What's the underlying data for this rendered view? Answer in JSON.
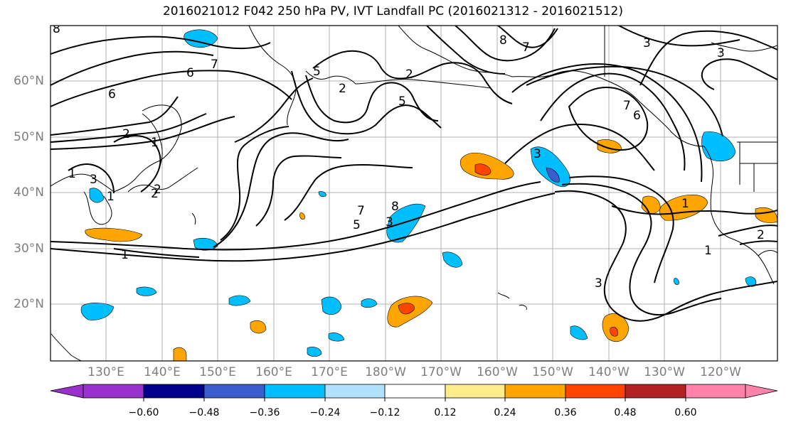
{
  "title": "2016021012 F042 250 hPa PV, IVT Landfall PC (2016021312 - 2016021512)",
  "map": {
    "lon_labels": [
      "130°E",
      "140°E",
      "150°E",
      "160°E",
      "170°E",
      "180°W",
      "170°W",
      "160°W",
      "150°W",
      "140°W",
      "130°W",
      "120°W"
    ],
    "lat_labels": [
      "60°N",
      "50°N",
      "40°N",
      "30°N",
      "20°N"
    ],
    "contour_labels": [
      "8",
      "7",
      "6",
      "6",
      "2",
      "1",
      "1",
      "3",
      "1",
      "2",
      "5",
      "2",
      "5",
      "2",
      "7",
      "5",
      "8",
      "3",
      "7",
      "6",
      "8",
      "3",
      "7",
      "3",
      "1",
      "2",
      "3",
      "1",
      "3",
      "1",
      "2"
    ]
  },
  "colorbar": {
    "tick_labels": [
      "−0.60",
      "−0.48",
      "−0.36",
      "−0.24",
      "−0.12",
      "0.12",
      "0.24",
      "0.36",
      "0.48",
      "0.60"
    ],
    "colors": [
      "#9932CC",
      "#00008B",
      "#3A5FCD",
      "#00BFFF",
      "#B0E2FF",
      "#FFFFFF",
      "#FFEC8B",
      "#FFA500",
      "#FF4500",
      "#B22222",
      "#FF82AB"
    ]
  }
}
